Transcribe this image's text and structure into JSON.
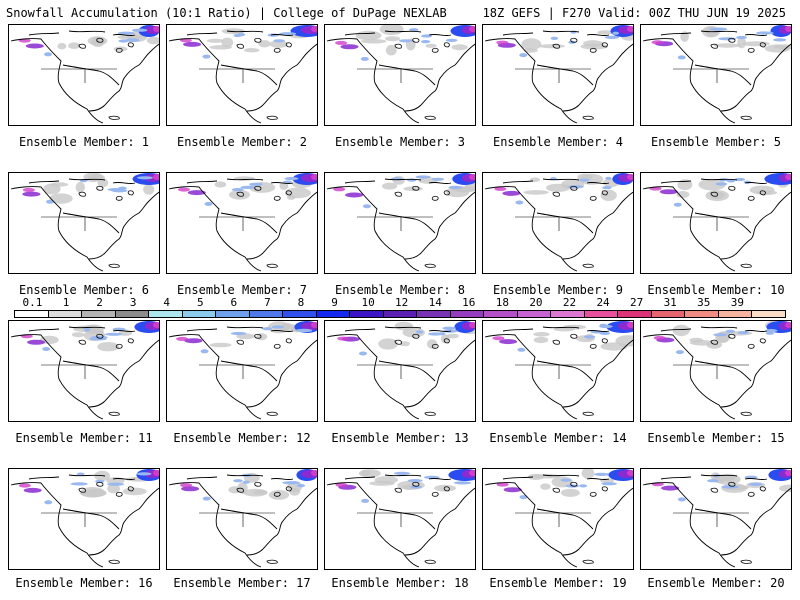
{
  "header": {
    "title": "Snowfall Accumulation (10:1 Ratio) | College of DuPage NEXLAB",
    "run_info": "18Z GEFS | F270 Valid: 00Z THU JUN 19 2025"
  },
  "panels": [
    {
      "label": "Ensemble Member: 1"
    },
    {
      "label": "Ensemble Member: 2"
    },
    {
      "label": "Ensemble Member: 3"
    },
    {
      "label": "Ensemble Member: 4"
    },
    {
      "label": "Ensemble Member: 5"
    },
    {
      "label": "Ensemble Member: 6"
    },
    {
      "label": "Ensemble Member: 7"
    },
    {
      "label": "Ensemble Member: 8"
    },
    {
      "label": "Ensemble Member: 9"
    },
    {
      "label": "Ensemble Member: 10"
    },
    {
      "label": "Ensemble Member: 11"
    },
    {
      "label": "Ensemble Member: 12"
    },
    {
      "label": "Ensemble Member: 13"
    },
    {
      "label": "Ensemble Member: 14"
    },
    {
      "label": "Ensemble Member: 15"
    },
    {
      "label": "Ensemble Member: 16"
    },
    {
      "label": "Ensemble Member: 17"
    },
    {
      "label": "Ensemble Member: 18"
    },
    {
      "label": "Ensemble Member: 19"
    },
    {
      "label": "Ensemble Member: 20"
    }
  ],
  "color_scale": {
    "labels": [
      "0.1",
      "1",
      "2",
      "3",
      "4",
      "5",
      "6",
      "7",
      "8",
      "9",
      "10",
      "12",
      "14",
      "16",
      "18",
      "20",
      "22",
      "24",
      "27",
      "31",
      "35",
      "39"
    ],
    "colors": [
      "#ffffff",
      "#dcdcdc",
      "#b4b4b4",
      "#8c8c8c",
      "#aee6f0",
      "#8ccbeb",
      "#6ea0eb",
      "#4f78eb",
      "#3250eb",
      "#1428f0",
      "#3c14c8",
      "#5a1eb4",
      "#7832b4",
      "#963cbe",
      "#b450c8",
      "#c864d2",
      "#dc78d2",
      "#e6509c",
      "#dc3278",
      "#e6646e",
      "#f08c82",
      "#f5b4a0",
      "#fadcc8"
    ]
  },
  "map_colors": {
    "coast": "#000000",
    "snow_gray": "#c8c8c8",
    "snow_light": "#9ab8f0",
    "snow_blue": "#2a4cf0",
    "snow_purple": "#8a2ad0",
    "snow_magenta": "#d23ccc"
  }
}
